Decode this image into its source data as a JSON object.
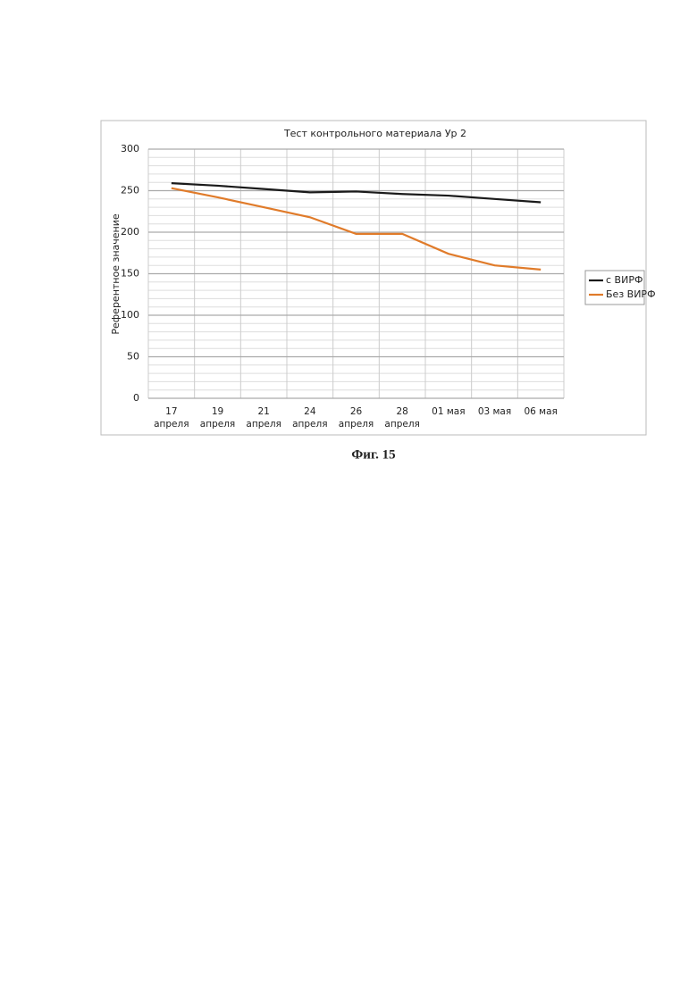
{
  "chart_data": {
    "type": "line",
    "title": "Тест контрольного материала Ур 2",
    "y_label": "Референтное значение",
    "caption": "Фиг. 15",
    "categories": [
      "17 апреля",
      "19 апреля",
      "21 апреля",
      "24 апреля",
      "26 апреля",
      "28 апреля",
      "01 мая",
      "03 мая",
      "06 мая"
    ],
    "series": [
      {
        "name": "с ВИРФ",
        "color": "#1a1a1a",
        "values": [
          259,
          256,
          252,
          248,
          249,
          246,
          244,
          240,
          236
        ]
      },
      {
        "name": "Без ВИРФ",
        "color": "#e07b2a",
        "values": [
          253,
          242,
          230,
          218,
          198,
          198,
          174,
          160,
          155
        ]
      }
    ],
    "ylim": [
      0,
      300
    ],
    "yticks": [
      0,
      50,
      100,
      150,
      200,
      250,
      300
    ],
    "grid": true,
    "minor_grid": true,
    "legend": "right"
  }
}
